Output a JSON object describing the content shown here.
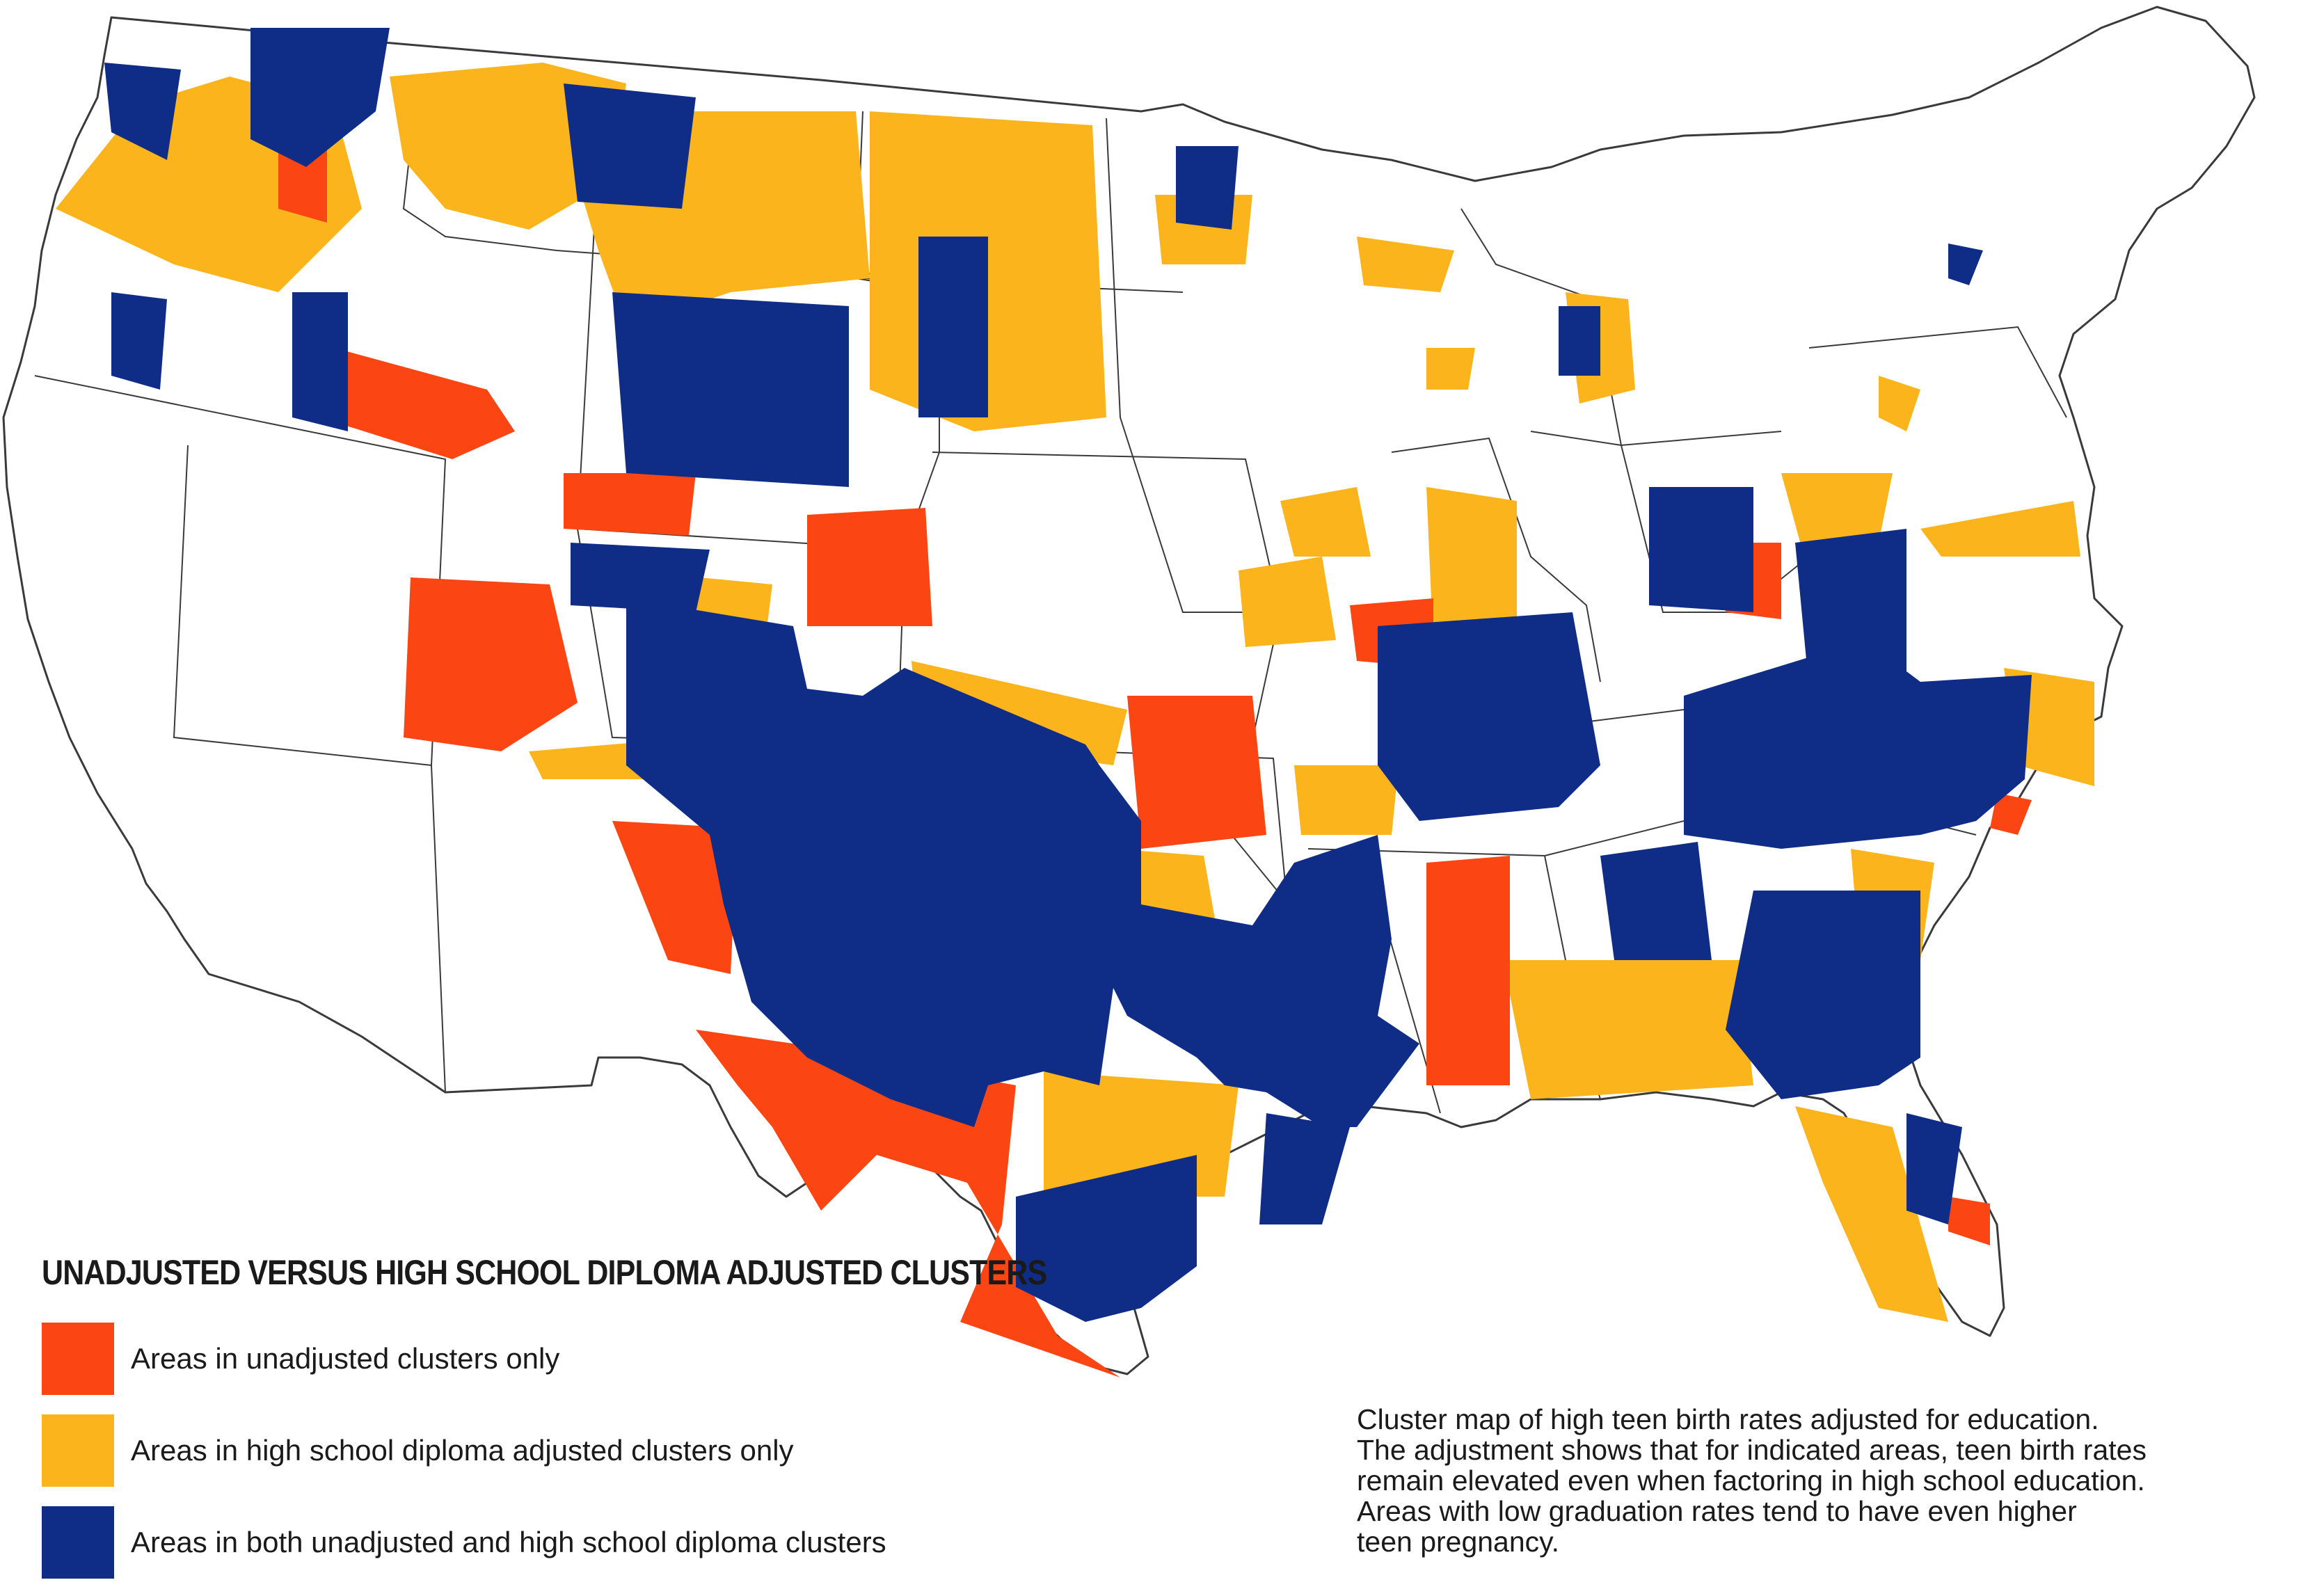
{
  "colors": {
    "unadjusted_only": "#fb4614",
    "adjusted_only": "#fbb41c",
    "both": "#0f2d87",
    "boundary": "#3a3a3a",
    "land": "#ffffff"
  },
  "legend": {
    "title": "UNADJUSTED VERSUS HIGH SCHOOL DIPLOMA ADJUSTED CLUSTERS",
    "items": [
      {
        "label": "Areas in unadjusted clusters only",
        "color": "#fb4614"
      },
      {
        "label": "Areas in high school diploma adjusted clusters only",
        "color": "#fbb41c"
      },
      {
        "label": "Areas in both unadjusted and high school diploma clusters",
        "color": "#0f2d87"
      }
    ]
  },
  "caption": {
    "lines": [
      "Cluster map of high teen birth rates adjusted for education.",
      "The adjustment shows that for indicated areas, teen birth rates",
      "remain elevated even when factoring in high school education.",
      "Areas with low graduation rates tend to have even higher",
      "teen pregnancy."
    ]
  }
}
